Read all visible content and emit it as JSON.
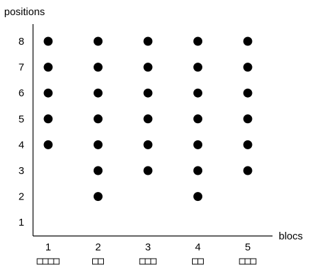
{
  "chart_data": {
    "type": "scatter",
    "title": "",
    "xlabel": "blocs",
    "ylabel": "positions",
    "x_ticks": [
      "1",
      "2",
      "3",
      "4",
      "5"
    ],
    "y_ticks": [
      "1",
      "2",
      "3",
      "4",
      "5",
      "6",
      "7",
      "8"
    ],
    "xlim": [
      0.3,
      5.6
    ],
    "ylim": [
      0.3,
      8.4
    ],
    "bloc_box_counts": [
      4,
      2,
      3,
      2,
      3
    ],
    "grid": false,
    "legend": "none",
    "points": [
      {
        "x": 1,
        "y": 4
      },
      {
        "x": 1,
        "y": 5
      },
      {
        "x": 1,
        "y": 6
      },
      {
        "x": 1,
        "y": 7
      },
      {
        "x": 1,
        "y": 8
      },
      {
        "x": 2,
        "y": 2
      },
      {
        "x": 2,
        "y": 3
      },
      {
        "x": 2,
        "y": 4
      },
      {
        "x": 2,
        "y": 5
      },
      {
        "x": 2,
        "y": 6
      },
      {
        "x": 2,
        "y": 7
      },
      {
        "x": 2,
        "y": 8
      },
      {
        "x": 3,
        "y": 3
      },
      {
        "x": 3,
        "y": 4
      },
      {
        "x": 3,
        "y": 5
      },
      {
        "x": 3,
        "y": 6
      },
      {
        "x": 3,
        "y": 7
      },
      {
        "x": 3,
        "y": 8
      },
      {
        "x": 4,
        "y": 2
      },
      {
        "x": 4,
        "y": 3
      },
      {
        "x": 4,
        "y": 4
      },
      {
        "x": 4,
        "y": 5
      },
      {
        "x": 4,
        "y": 6
      },
      {
        "x": 4,
        "y": 7
      },
      {
        "x": 4,
        "y": 8
      },
      {
        "x": 5,
        "y": 3
      },
      {
        "x": 5,
        "y": 4
      },
      {
        "x": 5,
        "y": 5
      },
      {
        "x": 5,
        "y": 6
      },
      {
        "x": 5,
        "y": 7
      },
      {
        "x": 5,
        "y": 8
      }
    ],
    "colors": {
      "marker": "#000000",
      "axis": "#000000"
    }
  }
}
